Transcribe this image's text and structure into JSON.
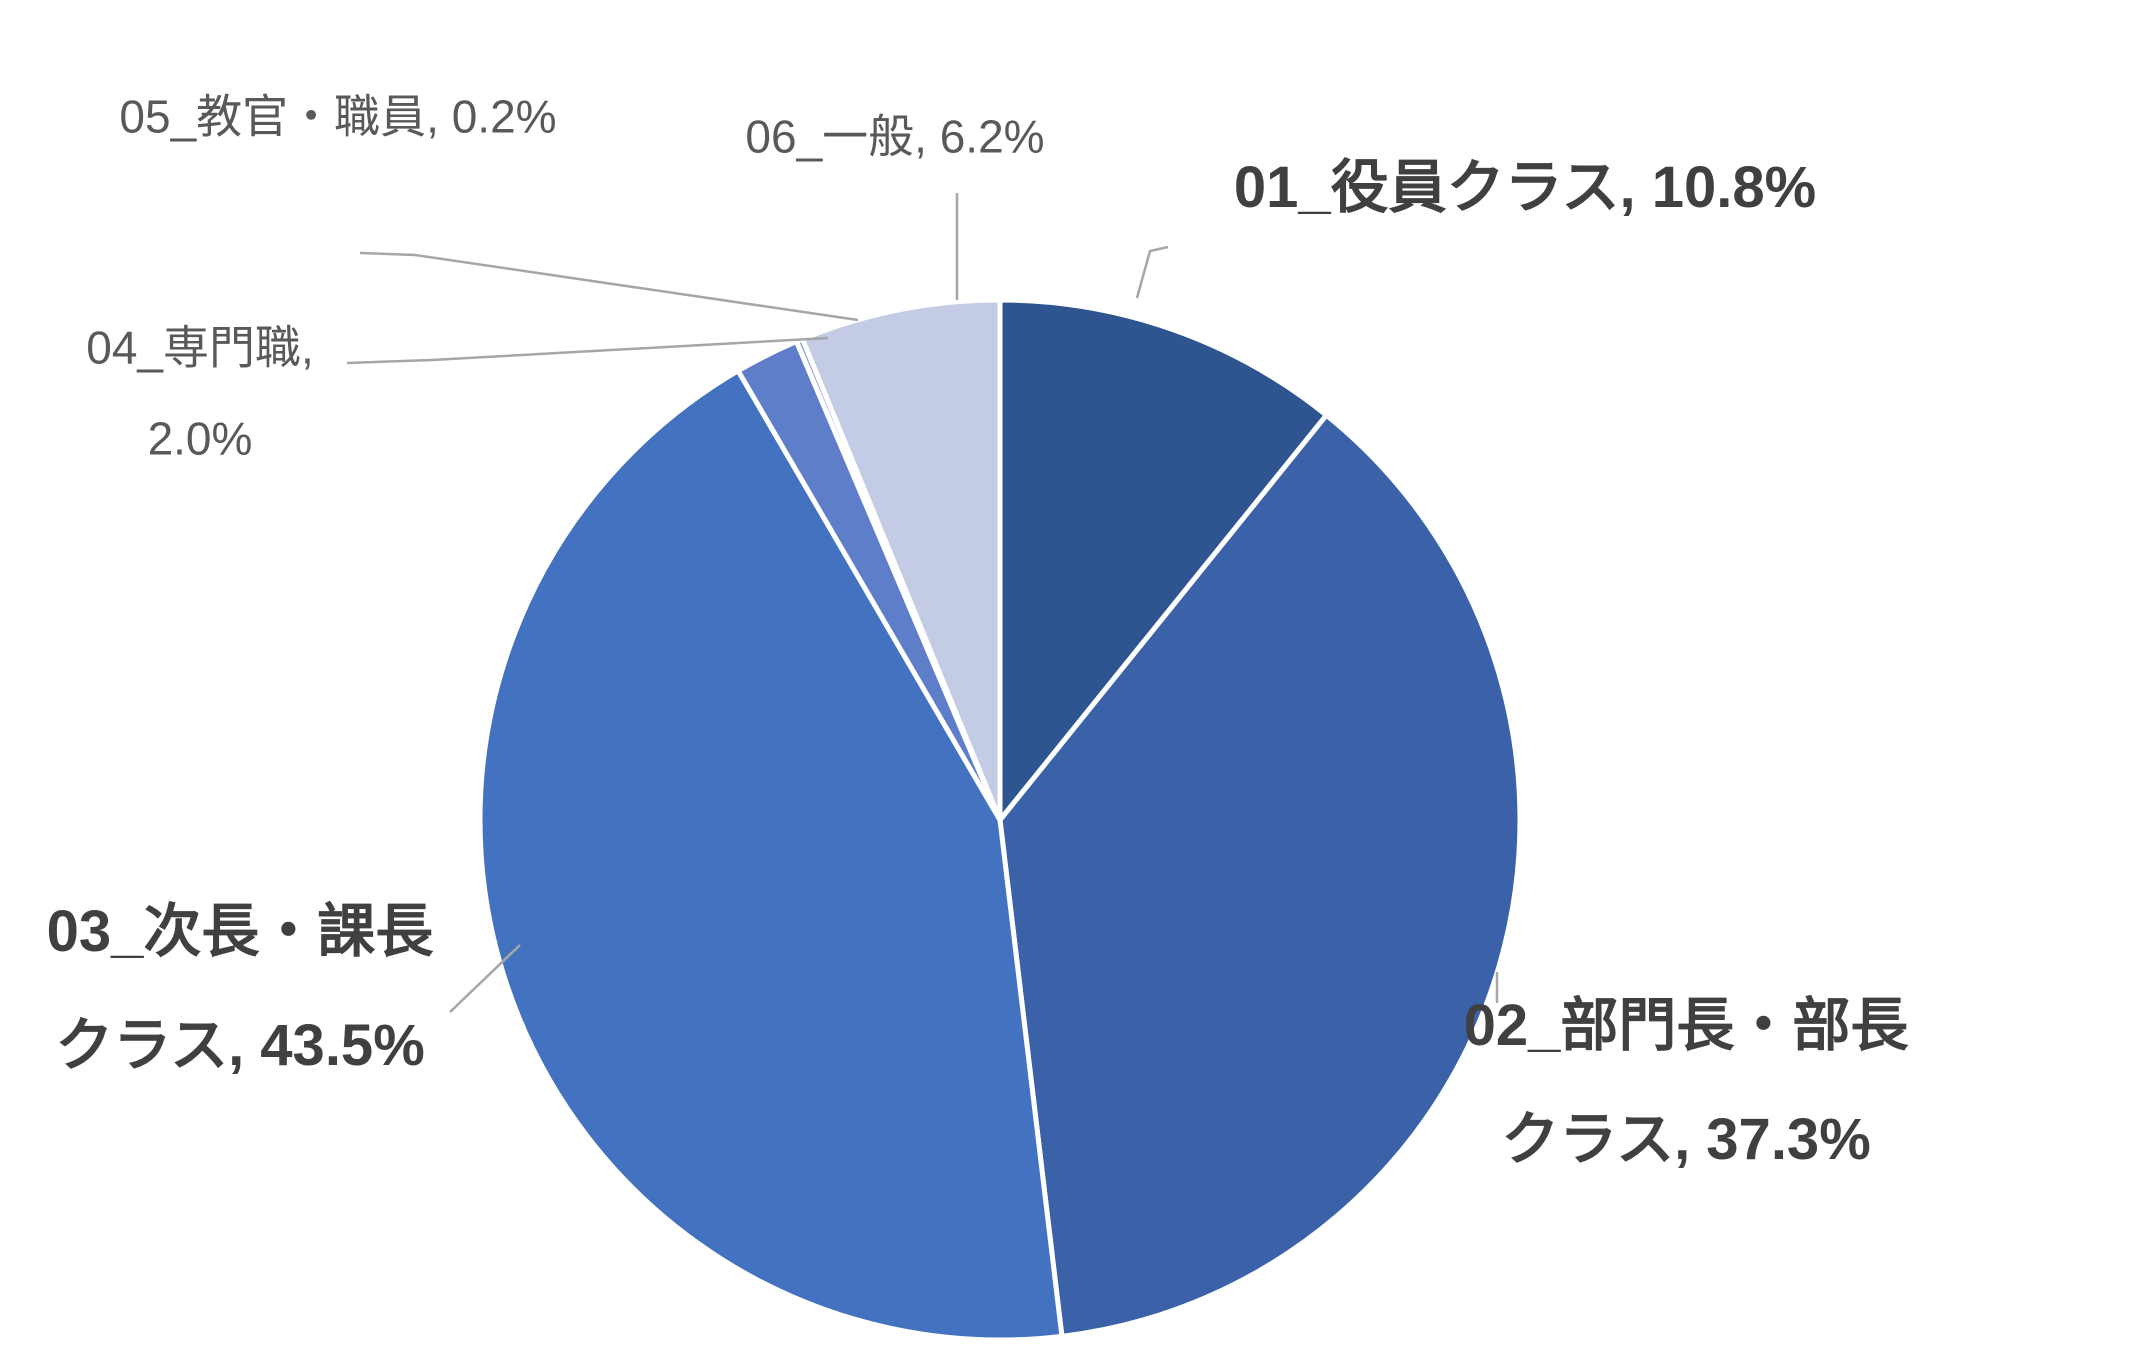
{
  "chart_data": {
    "type": "pie",
    "title": "",
    "start_angle_deg": 0,
    "direction": "clockwise",
    "grid": "off",
    "legend": "none",
    "separator_color": "#FFFFFF",
    "leader_line_color": "#A6A6A6",
    "label_color_small": "#595959",
    "label_color_large": "#404040",
    "slices": [
      {
        "label": "01_役員クラス",
        "value_pct": 10.8,
        "color": "#2F5591",
        "data_label": "01_役員クラス, 10.8%",
        "label_lines": [
          "01_役員クラス, 10.8%"
        ],
        "label_style": "bold"
      },
      {
        "label": "02_部門長・部長クラス",
        "value_pct": 37.3,
        "color": "#3B62A8",
        "data_label": "02_部門長・部長クラス, 37.3%",
        "label_lines": [
          "02_部門長・部長",
          "クラス, 37.3%"
        ],
        "label_style": "bold"
      },
      {
        "label": "03_次長・課長クラス",
        "value_pct": 43.5,
        "color": "#4372C0",
        "data_label": "03_次長・課長クラス, 43.5%",
        "label_lines": [
          "03_次長・課長",
          "クラス, 43.5%"
        ],
        "label_style": "bold"
      },
      {
        "label": "04_専門職",
        "value_pct": 2.0,
        "color": "#5F7EC9",
        "data_label": "04_専門職, 2.0%",
        "label_lines": [
          "04_専門職,",
          "2.0%"
        ],
        "label_style": "thin"
      },
      {
        "label": "05_教官・職員",
        "value_pct": 0.2,
        "color": "#8FA0D8",
        "data_label": "05_教官・職員, 0.2%",
        "label_lines": [
          "05_教官・職員, 0.2%"
        ],
        "label_style": "thin"
      },
      {
        "label": "06_一般",
        "value_pct": 6.2,
        "color": "#C3CBE5",
        "data_label": "06_一般, 6.2%",
        "label_lines": [
          "06_一般, 6.2%"
        ],
        "label_style": "thin"
      }
    ]
  }
}
